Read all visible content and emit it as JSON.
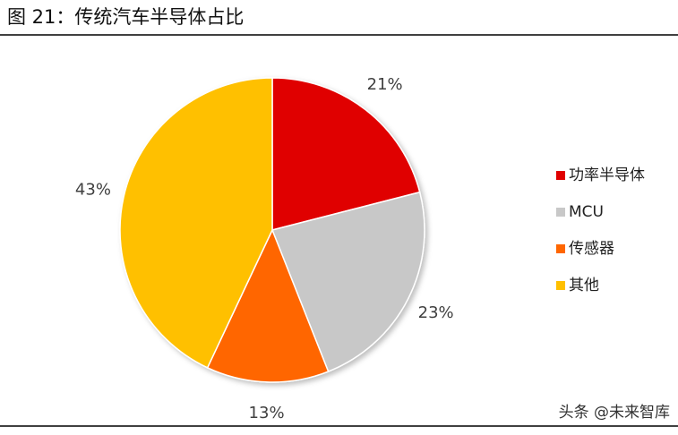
{
  "chart_data": {
    "type": "pie",
    "title": "图 21：传统汽车半导体占比",
    "categories": [
      "功率半导体",
      "MCU",
      "传感器",
      "其他"
    ],
    "values": [
      21,
      23,
      13,
      43
    ],
    "value_labels": [
      "21%",
      "23%",
      "13%",
      "43%"
    ],
    "colors": [
      "#e00000",
      "#c8c8c8",
      "#ff6600",
      "#ffc000"
    ],
    "legend": "right",
    "watermark": "头条 @未来智库"
  }
}
